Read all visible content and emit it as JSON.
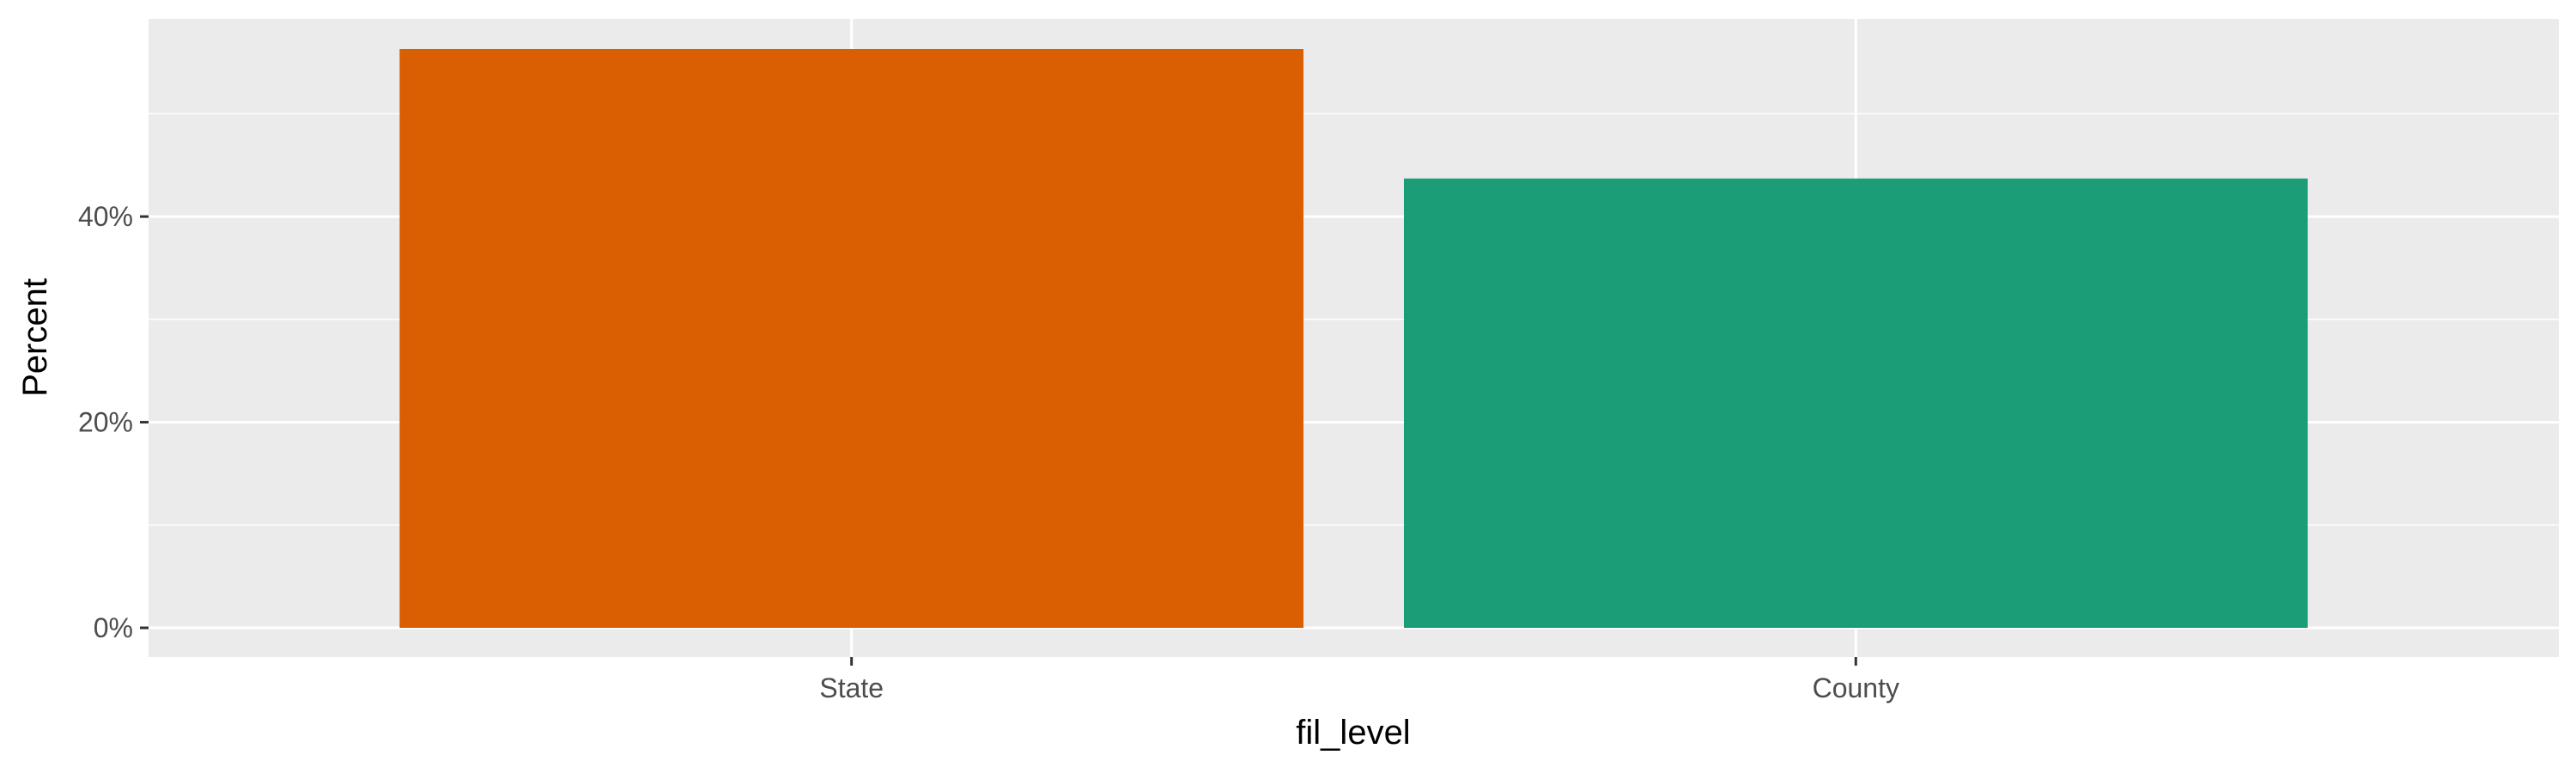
{
  "chart_data": {
    "type": "bar",
    "categories": [
      "State",
      "County"
    ],
    "values": [
      56.3,
      43.7
    ],
    "colors": [
      "#d95f02",
      "#1b9e77"
    ],
    "xlabel": "fil_level",
    "ylabel": "Percent",
    "ylim": [
      0,
      59
    ],
    "yticks": [
      0,
      20,
      40
    ],
    "ytick_labels": [
      "0%",
      "20%",
      "40%"
    ],
    "grid": true,
    "legend": "none",
    "panel_background": "#ebebeb",
    "grid_color": "#ffffff"
  }
}
